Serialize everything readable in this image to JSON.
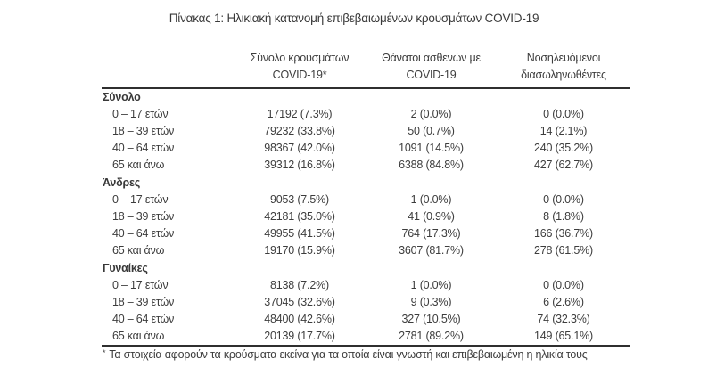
{
  "page": {
    "title": "Πίνακας 1: Ηλικιακή κατανομή επιβεβαιωμένων κρουσμάτων COVID-19",
    "footnote_marker": "*",
    "footnote_text": "Τα στοιχεία αφορούν τα κρούσματα εκείνα για τα οποία είναι γνωστή και επιβεβαιωμένη η ηλικία τους"
  },
  "colors": {
    "text": "#3d3d3d",
    "rule": "#2f2f2f",
    "background": "#ffffff"
  },
  "table": {
    "col_headers": [
      {
        "line1": "Σύνολο κρουσμάτων",
        "line2": "COVID-19*"
      },
      {
        "line1": "Θάνατοι ασθενών με",
        "line2": "COVID-19"
      },
      {
        "line1": "Νοσηλευόμενοι",
        "line2": "διασωληνωθέντες"
      }
    ],
    "sections": [
      {
        "label": "Σύνολο",
        "rows": [
          {
            "age": "0 – 17 ετών",
            "cases": "17192 (7.3%)",
            "deaths": "2 (0.0%)",
            "intubated": "0 (0.0%)"
          },
          {
            "age": "18 – 39 ετών",
            "cases": "79232 (33.8%)",
            "deaths": "50 (0.7%)",
            "intubated": "14 (2.1%)"
          },
          {
            "age": "40 – 64 ετών",
            "cases": "98367 (42.0%)",
            "deaths": "1091 (14.5%)",
            "intubated": "240 (35.2%)"
          },
          {
            "age": "65 και άνω",
            "cases": "39312 (16.8%)",
            "deaths": "6388 (84.8%)",
            "intubated": "427 (62.7%)"
          }
        ]
      },
      {
        "label": "Άνδρες",
        "rows": [
          {
            "age": "0 – 17 ετών",
            "cases": "9053 (7.5%)",
            "deaths": "1 (0.0%)",
            "intubated": "0 (0.0%)"
          },
          {
            "age": "18 – 39 ετών",
            "cases": "42181 (35.0%)",
            "deaths": "41 (0.9%)",
            "intubated": "8 (1.8%)"
          },
          {
            "age": "40 – 64 ετών",
            "cases": "49955 (41.5%)",
            "deaths": "764 (17.3%)",
            "intubated": "166 (36.7%)"
          },
          {
            "age": "65 και άνω",
            "cases": "19170 (15.9%)",
            "deaths": "3607 (81.7%)",
            "intubated": "278 (61.5%)"
          }
        ]
      },
      {
        "label": "Γυναίκες",
        "rows": [
          {
            "age": "0 – 17 ετών",
            "cases": "8138 (7.2%)",
            "deaths": "1 (0.0%)",
            "intubated": "0 (0.0%)"
          },
          {
            "age": "18 – 39 ετών",
            "cases": "37045 (32.6%)",
            "deaths": "9 (0.3%)",
            "intubated": "6 (2.6%)"
          },
          {
            "age": "40 – 64 ετών",
            "cases": "48400 (42.6%)",
            "deaths": "327 (10.5%)",
            "intubated": "74 (32.3%)"
          },
          {
            "age": "65 και άνω",
            "cases": "20139 (17.7%)",
            "deaths": "2781 (89.2%)",
            "intubated": "149 (65.1%)"
          }
        ]
      }
    ]
  }
}
